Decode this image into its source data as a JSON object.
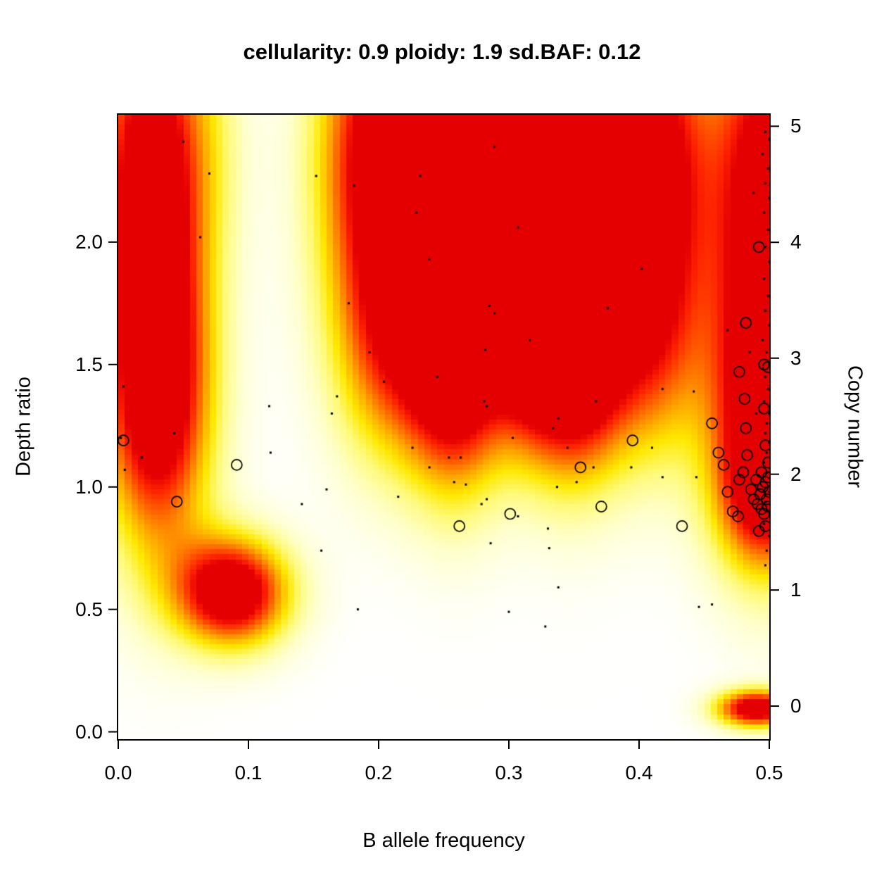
{
  "estimate": {
    "cellularity": "0.9",
    "ploidy": "1.9",
    "sd_baf": "0.12"
  },
  "chart_data": {
    "type": "heatmap",
    "title": "cellularity: 0.9 ploidy: 1.9 sd.BAF: 0.12",
    "xlabel": "B allele frequency",
    "ylabel": "Depth ratio",
    "y2label": "Copy number",
    "xlim": [
      0,
      0.5
    ],
    "ylim": [
      -0.03,
      2.52
    ],
    "grid": false,
    "legend": "none",
    "xticks": {
      "values": [
        0.0,
        0.1,
        0.2,
        0.3,
        0.4,
        0.5
      ],
      "labels": [
        "0.0",
        "0.1",
        "0.2",
        "0.3",
        "0.4",
        "0.5"
      ]
    },
    "yticks": {
      "values": [
        0.0,
        0.5,
        1.0,
        1.5,
        2.0
      ],
      "labels": [
        "0.0",
        "0.5",
        "1.0",
        "1.5",
        "2.0"
      ]
    },
    "y2ticks": {
      "positions": [
        0.105,
        0.579,
        1.052,
        1.526,
        1.999,
        2.473
      ],
      "labels": [
        "0",
        "1",
        "2",
        "3",
        "4",
        "5"
      ]
    },
    "colormap": [
      [
        0.0,
        255,
        255,
        255
      ],
      [
        0.15,
        255,
        255,
        205
      ],
      [
        0.32,
        255,
        250,
        120
      ],
      [
        0.48,
        255,
        232,
        0
      ],
      [
        0.63,
        255,
        170,
        0
      ],
      [
        0.78,
        255,
        95,
        0
      ],
      [
        0.9,
        255,
        35,
        0
      ],
      [
        1.0,
        228,
        0,
        0
      ]
    ],
    "heat_blobs_format": "x, y, sigma_x, sigma_y, amplitude (posterior density peaks)",
    "heat_blobs": [
      [
        0.025,
        2.3,
        0.03,
        0.5,
        1.2
      ],
      [
        0.03,
        1.35,
        0.03,
        0.45,
        1.2
      ],
      [
        0.088,
        0.57,
        0.031,
        0.16,
        1.25
      ],
      [
        0.075,
        2.45,
        0.02,
        0.4,
        0.15
      ],
      [
        0.2,
        2.35,
        0.034,
        0.5,
        1.15
      ],
      [
        0.205,
        1.55,
        0.03,
        0.35,
        0.55
      ],
      [
        0.26,
        2.2,
        0.03,
        0.55,
        1.2
      ],
      [
        0.26,
        1.45,
        0.028,
        0.35,
        0.9
      ],
      [
        0.313,
        2.3,
        0.022,
        0.5,
        1.05
      ],
      [
        0.313,
        1.6,
        0.02,
        0.3,
        0.4
      ],
      [
        0.348,
        2.1,
        0.03,
        0.55,
        1.15
      ],
      [
        0.35,
        1.45,
        0.028,
        0.3,
        0.85
      ],
      [
        0.41,
        2.3,
        0.03,
        0.5,
        1.15
      ],
      [
        0.41,
        1.55,
        0.028,
        0.35,
        0.5
      ],
      [
        0.5,
        2.2,
        0.033,
        0.6,
        1.2
      ],
      [
        0.5,
        1.25,
        0.033,
        0.4,
        1.0
      ],
      [
        0.495,
        0.95,
        0.025,
        0.2,
        0.5
      ],
      [
        0.49,
        0.095,
        0.022,
        0.055,
        1.2
      ]
    ],
    "points_format": "[B allele frequency, depth ratio] small mutation dots",
    "points": [
      [
        0.05,
        2.41
      ],
      [
        0.07,
        2.28
      ],
      [
        0.063,
        2.02
      ],
      [
        0.152,
        2.27
      ],
      [
        0.181,
        2.23
      ],
      [
        0.232,
        2.27
      ],
      [
        0.229,
        2.12
      ],
      [
        0.289,
        2.39
      ],
      [
        0.307,
        2.06
      ],
      [
        0.239,
        1.93
      ],
      [
        0.402,
        1.89
      ],
      [
        0.177,
        1.75
      ],
      [
        0.285,
        1.74
      ],
      [
        0.289,
        1.71
      ],
      [
        0.316,
        1.6
      ],
      [
        0.376,
        1.73
      ],
      [
        0.193,
        1.55
      ],
      [
        0.204,
        1.43
      ],
      [
        0.245,
        1.45
      ],
      [
        0.282,
        1.56
      ],
      [
        0.468,
        1.64
      ],
      [
        0.116,
        1.33
      ],
      [
        0.164,
        1.3
      ],
      [
        0.168,
        1.37
      ],
      [
        0.281,
        1.35
      ],
      [
        0.283,
        1.33
      ],
      [
        0.303,
        1.2
      ],
      [
        0.334,
        1.24
      ],
      [
        0.338,
        1.28
      ],
      [
        0.367,
        1.35
      ],
      [
        0.418,
        1.4
      ],
      [
        0.442,
        1.39
      ],
      [
        0.004,
        1.41
      ],
      [
        0.002,
        1.2
      ],
      [
        0.018,
        1.12
      ],
      [
        0.043,
        1.22
      ],
      [
        0.005,
        1.07
      ],
      [
        0.117,
        1.14
      ],
      [
        0.141,
        0.93
      ],
      [
        0.16,
        0.99
      ],
      [
        0.215,
        0.96
      ],
      [
        0.226,
        1.16
      ],
      [
        0.239,
        1.08
      ],
      [
        0.254,
        1.12
      ],
      [
        0.263,
        1.12
      ],
      [
        0.267,
        1.01
      ],
      [
        0.279,
        0.93
      ],
      [
        0.283,
        0.95
      ],
      [
        0.258,
        1.02
      ],
      [
        0.286,
        0.77
      ],
      [
        0.307,
        0.88
      ],
      [
        0.33,
        0.83
      ],
      [
        0.331,
        0.75
      ],
      [
        0.337,
        1.0
      ],
      [
        0.345,
        1.16
      ],
      [
        0.365,
        1.08
      ],
      [
        0.394,
        1.08
      ],
      [
        0.41,
        1.16
      ],
      [
        0.418,
        1.04
      ],
      [
        0.444,
        1.04
      ],
      [
        0.3,
        0.49
      ],
      [
        0.328,
        0.43
      ],
      [
        0.338,
        0.59
      ],
      [
        0.184,
        0.5
      ],
      [
        0.156,
        0.74
      ],
      [
        0.446,
        0.51
      ],
      [
        0.456,
        0.52
      ],
      [
        0.352,
        1.02
      ],
      [
        0.488,
        2.2
      ],
      [
        0.485,
        1.55
      ],
      [
        0.49,
        1.3
      ],
      [
        0.497,
        2.45
      ],
      [
        0.5,
        2.42
      ],
      [
        0.495,
        2.36
      ],
      [
        0.499,
        2.3
      ],
      [
        0.497,
        2.24
      ],
      [
        0.5,
        2.18
      ],
      [
        0.496,
        2.12
      ],
      [
        0.499,
        2.05
      ],
      [
        0.497,
        1.98
      ],
      [
        0.5,
        1.92
      ],
      [
        0.496,
        1.85
      ],
      [
        0.499,
        1.78
      ],
      [
        0.497,
        1.72
      ],
      [
        0.5,
        1.66
      ],
      [
        0.495,
        1.6
      ],
      [
        0.498,
        1.55
      ],
      [
        0.5,
        1.5
      ],
      [
        0.497,
        1.45
      ],
      [
        0.499,
        1.4
      ],
      [
        0.496,
        1.35
      ],
      [
        0.5,
        1.3
      ],
      [
        0.498,
        1.26
      ],
      [
        0.497,
        1.22
      ],
      [
        0.5,
        1.18
      ],
      [
        0.498,
        1.14
      ],
      [
        0.496,
        1.1
      ],
      [
        0.499,
        1.06
      ],
      [
        0.5,
        0.98
      ],
      [
        0.497,
        0.94
      ],
      [
        0.499,
        0.9
      ],
      [
        0.496,
        0.85
      ],
      [
        0.5,
        0.8
      ],
      [
        0.498,
        0.74
      ],
      [
        0.497,
        0.68
      ]
    ],
    "circles_format": "[B allele frequency, depth ratio] segment open circles",
    "circles": [
      [
        0.004,
        1.19
      ],
      [
        0.045,
        0.94
      ],
      [
        0.091,
        1.09
      ],
      [
        0.262,
        0.84
      ],
      [
        0.301,
        0.89
      ],
      [
        0.371,
        0.92
      ],
      [
        0.355,
        1.08
      ],
      [
        0.395,
        1.19
      ],
      [
        0.433,
        0.84
      ],
      [
        0.492,
        1.98
      ],
      [
        0.482,
        1.67
      ],
      [
        0.496,
        1.5
      ],
      [
        0.499,
        1.49
      ],
      [
        0.477,
        1.47
      ],
      [
        0.481,
        1.36
      ],
      [
        0.496,
        1.32
      ],
      [
        0.482,
        1.24
      ],
      [
        0.456,
        1.26
      ],
      [
        0.461,
        1.14
      ],
      [
        0.465,
        1.09
      ],
      [
        0.483,
        1.13
      ],
      [
        0.48,
        1.06
      ],
      [
        0.477,
        1.03
      ],
      [
        0.497,
        1.17
      ],
      [
        0.472,
        0.9
      ],
      [
        0.476,
        0.88
      ],
      [
        0.497,
        0.84
      ],
      [
        0.492,
        0.82
      ],
      [
        0.468,
        0.98
      ],
      [
        0.49,
        1.03
      ],
      [
        0.495,
        1.0
      ],
      [
        0.493,
        0.97
      ],
      [
        0.498,
        0.95
      ],
      [
        0.491,
        0.93
      ],
      [
        0.499,
        1.04
      ],
      [
        0.494,
        1.06
      ],
      [
        0.499,
        0.92
      ],
      [
        0.496,
        0.89
      ],
      [
        0.499,
        1.1
      ],
      [
        0.486,
        0.99
      ],
      [
        0.488,
        0.95
      ],
      [
        0.5,
        0.98
      ],
      [
        0.497,
        1.02
      ],
      [
        0.494,
        0.91
      ]
    ]
  }
}
